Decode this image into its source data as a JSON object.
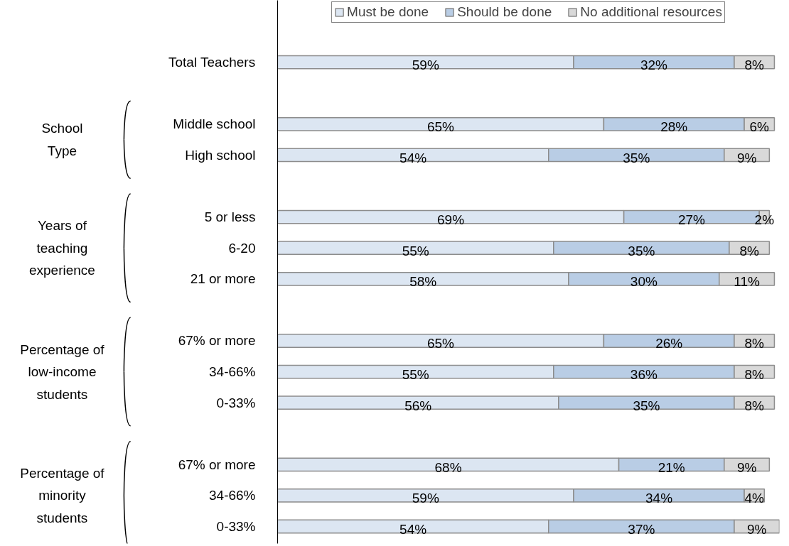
{
  "chart_data": {
    "type": "bar",
    "orientation": "horizontal",
    "stacked": true,
    "legend": "top",
    "grid": false,
    "tick_labels": "y",
    "categories": [
      "Total Teachers",
      null,
      "Middle school",
      "High school",
      null,
      "5 or less",
      "6-20",
      "21 or more",
      null,
      "67% or more",
      "34-66%",
      "0-33%",
      null,
      "67% or more",
      "34-66%",
      "0-33%"
    ],
    "series": [
      {
        "name": "Must be done",
        "color": "#dce6f2",
        "values": [
          59,
          null,
          65,
          54,
          null,
          69,
          55,
          58,
          null,
          65,
          55,
          56,
          null,
          68,
          59,
          54
        ],
        "value_labels": [
          "59%",
          null,
          "65%",
          "54%",
          null,
          "69%",
          "55%",
          "58%",
          null,
          "65%",
          "55%",
          "56%",
          null,
          "68%",
          "59%",
          "54%"
        ]
      },
      {
        "name": "Should be done",
        "color": "#b9cde5",
        "values": [
          32,
          null,
          28,
          35,
          null,
          27,
          35,
          30,
          null,
          26,
          36,
          35,
          null,
          21,
          34,
          37
        ],
        "value_labels": [
          "32%",
          null,
          "28%",
          "35%",
          null,
          "27%",
          "35%",
          "30%",
          null,
          "26%",
          "36%",
          "35%",
          null,
          "21%",
          "34%",
          "37%"
        ]
      },
      {
        "name": "No additional resources",
        "color": "#d9d9d9",
        "values": [
          8,
          null,
          6,
          9,
          null,
          2,
          8,
          11,
          null,
          8,
          8,
          8,
          null,
          9,
          4,
          9
        ],
        "value_labels": [
          "8%",
          null,
          "6%",
          "9%",
          null,
          "2%",
          "8%",
          "11%",
          null,
          "8%",
          "8%",
          "8%",
          null,
          "9%",
          "4%",
          "9%"
        ]
      }
    ],
    "annotations": [
      "School\nType",
      "Years of\nteaching\nexperience",
      "Percentage of\nlow-income\nstudents",
      "Percentage of\nminority\nstudents"
    ]
  }
}
